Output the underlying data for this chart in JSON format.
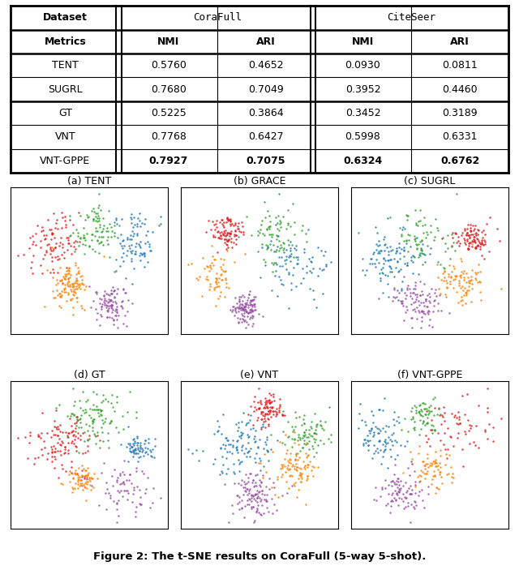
{
  "table": {
    "header_row1": [
      "Dataset",
      "CoraFull",
      "",
      "CiteSeer",
      ""
    ],
    "header_row2": [
      "Metrics",
      "NMI",
      "ARI",
      "NMI",
      "ARI"
    ],
    "rows": [
      [
        "TENT",
        "0.5760",
        "0.4652",
        "0.0930",
        "0.0811"
      ],
      [
        "SUGRL",
        "0.7680",
        "0.7049",
        "0.3952",
        "0.4460"
      ],
      [
        "GT",
        "0.5225",
        "0.3864",
        "0.3452",
        "0.3189"
      ],
      [
        "VNT",
        "0.7768",
        "0.6427",
        "0.5998",
        "0.6331"
      ],
      [
        "VNT-GPPE",
        "0.7927",
        "0.7075",
        "0.6324",
        "0.6762"
      ]
    ],
    "bold_row": 4
  },
  "subplot_labels": [
    "(a) TENT",
    "(b) GRACE",
    "(c) SUGRL",
    "(d) GT",
    "(e) VNT",
    "(f) VNT-GPPE"
  ],
  "caption": "Figure 2: The t-SNE results on CoraFull (5-way 5-shot).",
  "colors": [
    "#e31a1c",
    "#33a02c",
    "#1f78b4",
    "#ff7f00",
    "#984ea3"
  ],
  "bg_color": "#ffffff",
  "seed": 42
}
